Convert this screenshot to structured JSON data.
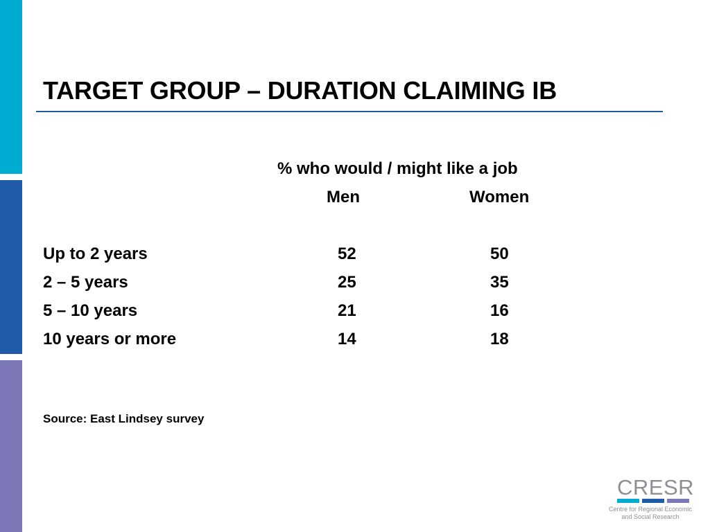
{
  "colors": {
    "bar_cyan": "#00acd2",
    "bar_blue": "#1f5ba8",
    "bar_purple": "#7c78b7",
    "title_rule": "#1e5a9a"
  },
  "slide": {
    "title": "TARGET GROUP – DURATION CLAIMING IB",
    "table": {
      "caption": "% who would / might like a job",
      "col_men": "Men",
      "col_women": "Women",
      "rows": [
        {
          "label": "Up to 2 years",
          "men": "52",
          "women": "50"
        },
        {
          "label": "2 – 5 years",
          "men": "25",
          "women": "35"
        },
        {
          "label": "5 – 10 years",
          "men": "21",
          "women": "16"
        },
        {
          "label": "10 years or more",
          "men": "14",
          "women": "18"
        }
      ]
    },
    "source": "Source: East Lindsey survey"
  },
  "logo": {
    "word": "CRESR",
    "line1": "Centre for Regional Economic",
    "line2": "and Social Research"
  }
}
